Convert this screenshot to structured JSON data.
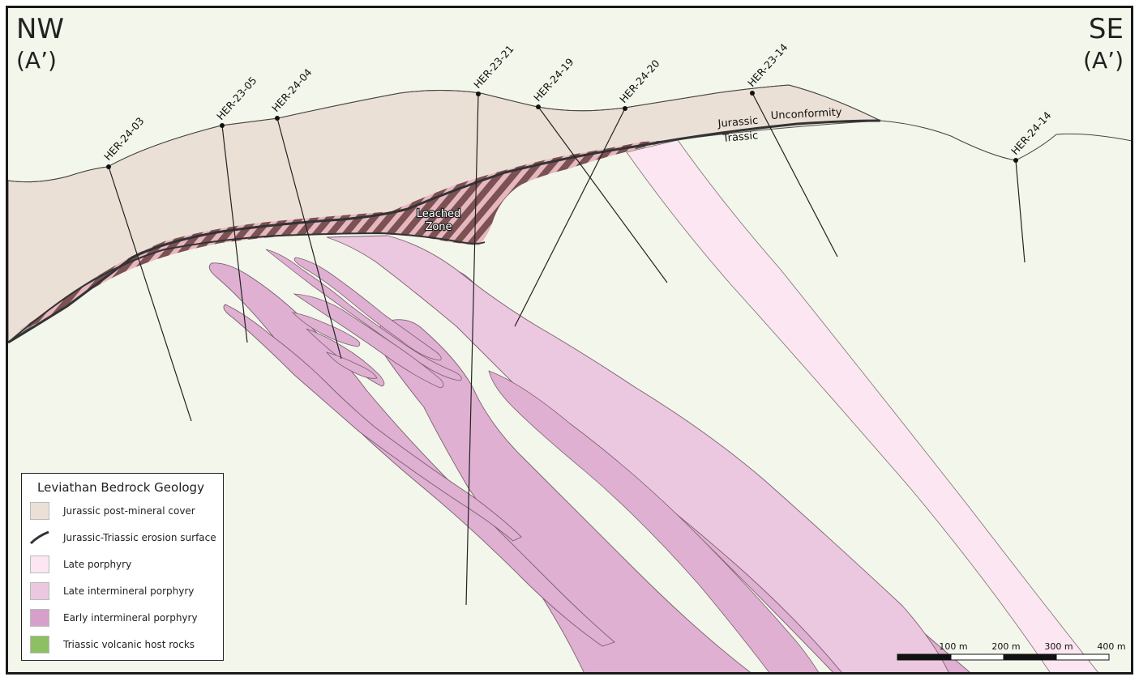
{
  "orientation": {
    "left_direction": "NW",
    "left_section": "(A’)",
    "right_direction": "SE",
    "right_section": "(A’)"
  },
  "drillholes": [
    "HER-24-03",
    "HER-23-05",
    "HER-24-04",
    "HER-23-21",
    "HER-24-19",
    "HER-24-20",
    "HER-23-14",
    "HER-24-14"
  ],
  "annotations": {
    "jurassic": "Jurassic",
    "unconformity": "Unconformity",
    "triassic": "Trassic",
    "leached_line1": "Leached",
    "leached_line2": "Zone"
  },
  "legend": {
    "title": "Leviathan Bedrock Geology",
    "items": [
      {
        "label": "Jurassic post-mineral cover",
        "color": "#ebe0d6",
        "kind": "box"
      },
      {
        "label": "Jurassic-Triassic erosion surface",
        "color": "#333333",
        "kind": "line"
      },
      {
        "label": "Late porphyry",
        "color": "#fbe6f1",
        "kind": "box"
      },
      {
        "label": "Late intermineral porphyry",
        "color": "#ecc8e0",
        "kind": "box"
      },
      {
        "label": "Early intermineral porphyry",
        "color": "#d7a0ca",
        "kind": "box"
      },
      {
        "label": "Triassic volcanic host rocks",
        "color": "#8cc063",
        "kind": "box"
      }
    ]
  },
  "scale_bar": {
    "labels": [
      "100 m",
      "200 m",
      "300 m",
      "400 m"
    ]
  },
  "colors": {
    "host_rock": "#f3f6ea",
    "cover": "#ebe0d6",
    "late_porphyry": "#fbe6f1",
    "late_intermineral": "#ecc8e0",
    "early_intermineral": "#dfb0d2",
    "early_intermineral_edge": "#c98ab8",
    "leached_stripe_dark": "#7b5153",
    "leached_stripe_light": "#e7b7c0"
  }
}
